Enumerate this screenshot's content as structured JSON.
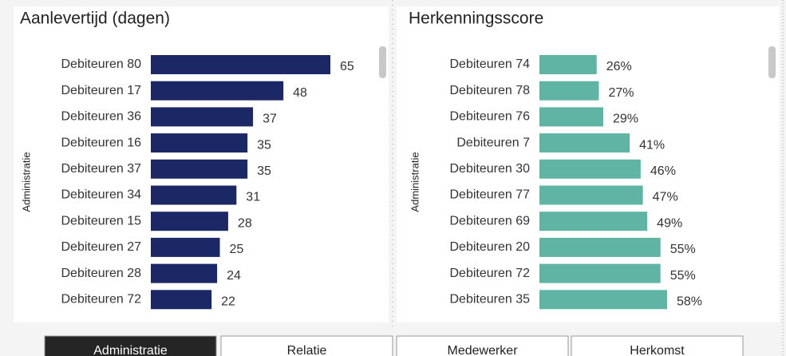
{
  "chart_data": [
    {
      "type": "bar",
      "orientation": "horizontal",
      "title": "Aanlevertijd (dagen)",
      "y_label": "Administratie",
      "categories": [
        "Debiteuren 80",
        "Debiteuren 17",
        "Debiteuren 36",
        "Debiteuren 16",
        "Debiteuren 37",
        "Debiteuren 34",
        "Debiteuren 15",
        "Debiteuren 27",
        "Debiteuren 28",
        "Debiteuren 72"
      ],
      "values": [
        65,
        48,
        37,
        35,
        35,
        31,
        28,
        25,
        24,
        22
      ],
      "color": "#1c2765"
    },
    {
      "type": "bar",
      "orientation": "horizontal",
      "title": "Herkenningsscore",
      "y_label": "Administratie",
      "categories": [
        "Debiteuren 74",
        "Debiteuren 78",
        "Debiteuren 76",
        "Debiteuren 7",
        "Debiteuren 30",
        "Debiteuren 77",
        "Debiteuren 69",
        "Debiteuren 20",
        "Debiteuren 72",
        "Debiteuren 35"
      ],
      "values": [
        26,
        27,
        29,
        41,
        46,
        47,
        49,
        55,
        55,
        58
      ],
      "value_labels": [
        "26%",
        "27%",
        "29%",
        "41%",
        "46%",
        "47%",
        "49%",
        "55%",
        "55%",
        "58%"
      ],
      "color": "#5fb4a4"
    }
  ],
  "tabs": {
    "items": [
      "Administratie",
      "Relatie",
      "Medewerker",
      "Herkomst"
    ],
    "selected": 0
  }
}
